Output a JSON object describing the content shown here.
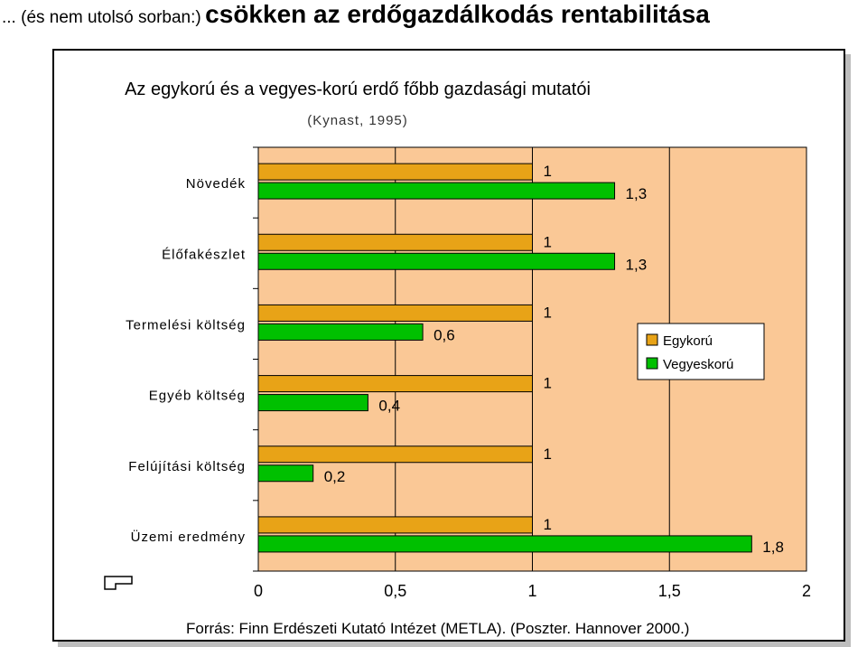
{
  "heading": {
    "prefix": "... (és nem utolsó sorban:)",
    "main": "csökken az erdőgazdálkodás rentabilitása"
  },
  "chart_data": {
    "type": "bar",
    "orientation": "horizontal",
    "title": "Az egykorú és a vegyes-korú erdő főbb gazdasági mutatói",
    "subtitle": "(Kynast, 1995)",
    "categories": [
      "Növedék",
      "Élőfakészlet",
      "Termelési költség",
      "Egyéb költség",
      "Felújítási költség",
      "Üzemi eredmény"
    ],
    "series": [
      {
        "name": "Egykorú",
        "color": "#E8A317",
        "values": [
          1,
          1,
          1,
          1,
          1,
          1
        ],
        "labels": [
          "1",
          "1",
          "1",
          "1",
          "1",
          "1"
        ]
      },
      {
        "name": "Vegyeskorú",
        "color": "#00C000",
        "values": [
          1.3,
          1.3,
          0.6,
          0.4,
          0.2,
          1.8
        ],
        "labels": [
          "1,3",
          "1,3",
          "0,6",
          "0,4",
          "0,2",
          "1,8"
        ]
      }
    ],
    "xlim": [
      0,
      2
    ],
    "xticks": [
      0,
      0.5,
      1,
      1.5,
      2
    ],
    "xtick_labels": [
      "0",
      "0,5",
      "1",
      "1,5",
      "2"
    ],
    "xlabel": "",
    "ylabel": "",
    "grid": true,
    "legend_position": "right",
    "plot_background": "#FAC896"
  },
  "source": "Forrás: Finn Erdészeti Kutató Intézet (METLA). (Poszter. Hannover 2000.)"
}
